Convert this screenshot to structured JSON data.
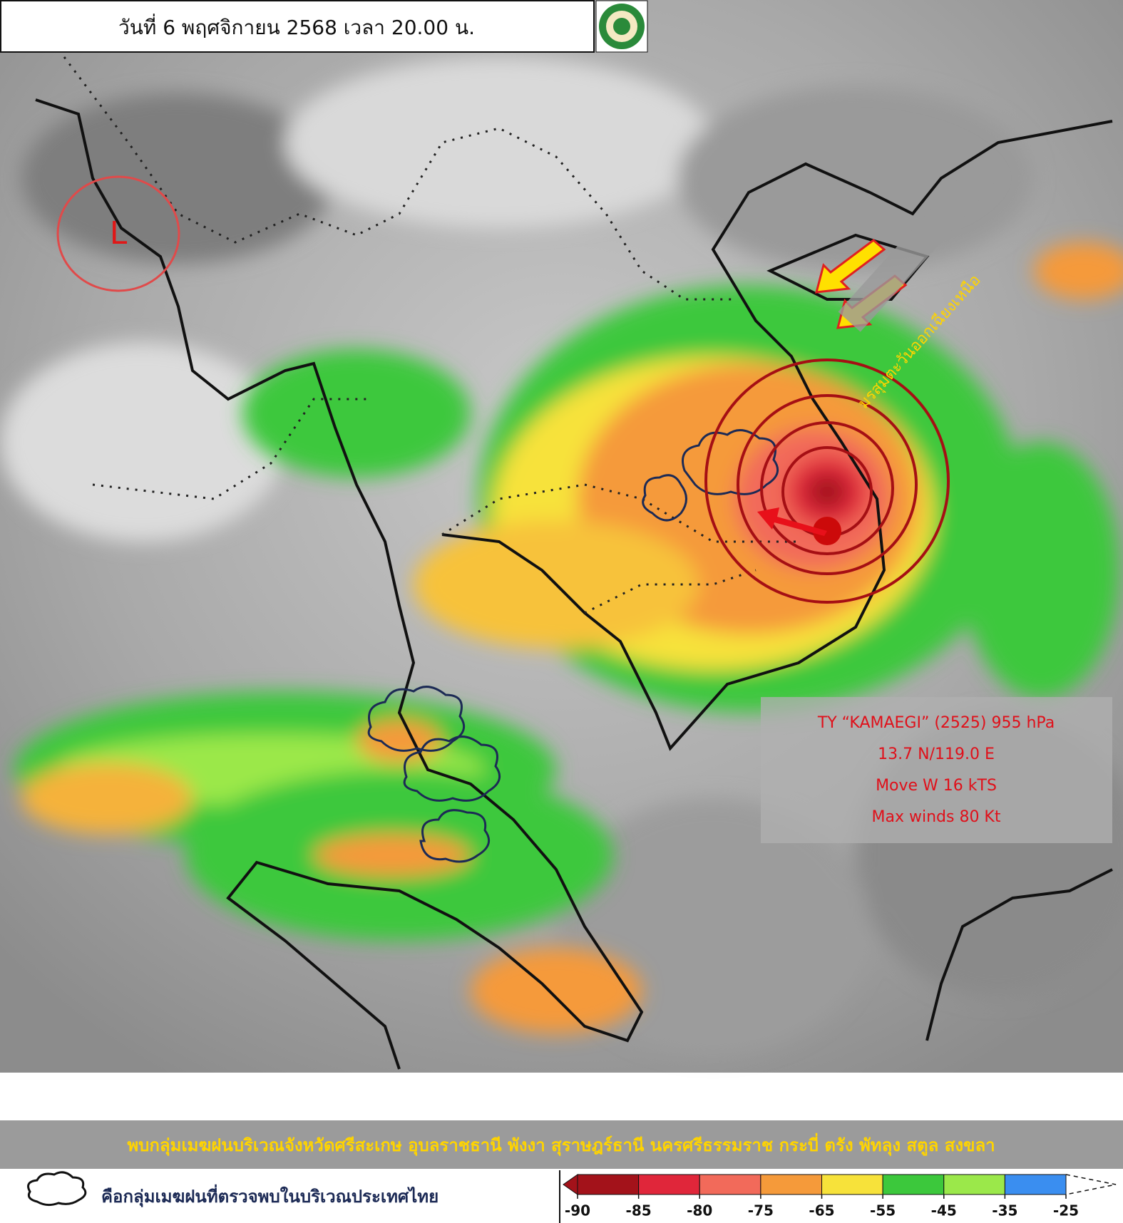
{
  "header": {
    "title": "วันที่ 6 พฤศจิกายน 2568 เวลา 20.00 น."
  },
  "map": {
    "low_label": "L",
    "monsoon_label": "มรสุมตะวันออกเฉียงเหนือ",
    "storm_info": [
      "TY “KAMAEGI” (2525) 955 hPa",
      "13.7 N/119.0 E",
      "Move W 16 kTS",
      "Max winds 80 Kt"
    ]
  },
  "banner": "พบกลุ่มเมฆฝนบริเวณจังหวัดศรีสะเกษ อุบลราชธานี พังงา สุราษฎร์ธานี นครศรีธรรมราช กระบี่ ตรัง พัทลุง สตูล สงขลา",
  "legend": {
    "note": "คือกลุ่มเมฆฝนที่ตรวจพบในบริเวณประเทศไทย",
    "ticks": [
      -90,
      -85,
      -80,
      -75,
      -65,
      -55,
      -45,
      -35,
      -25
    ],
    "colors": [
      "#a3121a",
      "#e0263a",
      "#f26a5a",
      "#f59a3a",
      "#f7e23a",
      "#3cc83c",
      "#9be84a",
      "#3a8ef0"
    ]
  }
}
